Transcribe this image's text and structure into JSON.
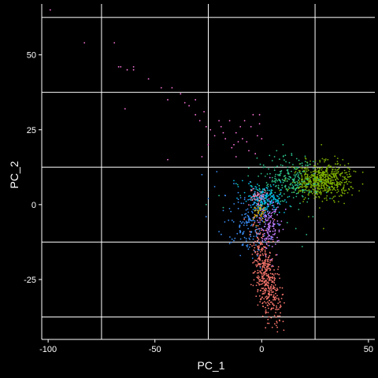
{
  "chart_data": {
    "type": "scatter",
    "title": "",
    "xlabel": "PC_1",
    "ylabel": "PC_2",
    "xlim": [
      -103,
      53
    ],
    "ylim": [
      -45,
      67
    ],
    "x_ticks": [
      -100,
      -50,
      0,
      50
    ],
    "y_ticks": [
      -25,
      0,
      25,
      50
    ],
    "x_tick_labels": [
      "-100",
      "-50",
      "0",
      "50"
    ],
    "y_tick_labels": [
      "-25",
      "0",
      "25",
      "50"
    ],
    "x_gridlines": [
      -75,
      -25,
      25
    ],
    "y_gridlines": [
      -37.5,
      -12.5,
      12.5,
      37.5,
      62.5
    ],
    "grid": true,
    "legend": "none",
    "background_color": "#000000",
    "foreground_color": "#ffffff",
    "series": [
      {
        "color": "#ff77dd",
        "points": [
          [
            -99,
            65
          ],
          [
            -83,
            54
          ],
          [
            -69,
            54
          ],
          [
            -67,
            46
          ],
          [
            -66,
            46
          ],
          [
            -63,
            45
          ],
          [
            -60,
            45
          ],
          [
            -60,
            46
          ],
          [
            -64,
            32
          ],
          [
            -53,
            42
          ],
          [
            -47,
            39
          ],
          [
            -44,
            35
          ],
          [
            -42,
            39
          ],
          [
            -38,
            37
          ],
          [
            -36,
            34
          ],
          [
            -34,
            33
          ],
          [
            -31,
            30
          ],
          [
            -29,
            28
          ],
          [
            -27,
            31
          ],
          [
            -26,
            26
          ],
          [
            -24,
            25
          ],
          [
            -22,
            23
          ],
          [
            -20,
            28
          ],
          [
            -19,
            26
          ],
          [
            -17,
            22
          ],
          [
            -15,
            28
          ],
          [
            -13,
            20
          ],
          [
            -12,
            24
          ],
          [
            -10,
            26
          ],
          [
            -9,
            22
          ],
          [
            -8,
            28
          ],
          [
            -7,
            21
          ],
          [
            -5,
            26
          ],
          [
            -4,
            30
          ],
          [
            -2,
            23
          ],
          [
            -1,
            27
          ],
          [
            0,
            22
          ],
          [
            -6,
            18
          ],
          [
            -12,
            16
          ],
          [
            -3,
            17
          ],
          [
            -1,
            30
          ],
          [
            -25,
            20
          ],
          [
            -28,
            16
          ],
          [
            -14,
            19
          ],
          [
            -11,
            21
          ],
          [
            -18,
            24
          ],
          [
            -31,
            35
          ],
          [
            -44,
            15
          ]
        ]
      },
      {
        "color": "#7cae00",
        "cluster": {
          "cx": 28,
          "cy": 8,
          "sx": 6.5,
          "sy": 2.8,
          "n": 620
        },
        "points": [
          [
            28,
            20
          ],
          [
            22,
            -4
          ],
          [
            29,
            -8
          ],
          [
            44,
            11
          ],
          [
            41,
            5
          ],
          [
            36,
            1
          ],
          [
            18,
            6
          ],
          [
            31,
            15
          ],
          [
            38,
            15
          ],
          [
            20,
            12
          ]
        ]
      },
      {
        "color": "#2cc28a",
        "cluster": {
          "cx": 12,
          "cy": 8,
          "sx": 7,
          "sy": 4,
          "n": 230
        },
        "points": [
          [
            10,
            20
          ],
          [
            7,
            18
          ],
          [
            6,
            16
          ],
          [
            14,
            17
          ],
          [
            5,
            9
          ],
          [
            3,
            6
          ],
          [
            1,
            5
          ],
          [
            2,
            2
          ],
          [
            0,
            0
          ],
          [
            -1,
            -1
          ],
          [
            -3,
            -2
          ],
          [
            6,
            -3
          ],
          [
            12,
            -6
          ],
          [
            16,
            -8
          ],
          [
            19,
            -14
          ],
          [
            21,
            -10
          ],
          [
            24,
            -4
          ],
          [
            13,
            14
          ],
          [
            9,
            11
          ],
          [
            -2,
            5
          ],
          [
            -10,
            3
          ],
          [
            -18,
            -1
          ],
          [
            -20,
            3
          ],
          [
            -26,
            0
          ],
          [
            8,
            2
          ],
          [
            4,
            0
          ]
        ]
      },
      {
        "color": "#00b9e3",
        "cluster": {
          "cx": 2,
          "cy": 2,
          "sx": 4,
          "sy": 2.2,
          "n": 190
        },
        "points": [
          [
            -6,
            7
          ],
          [
            -9,
            8
          ],
          [
            -11,
            6
          ],
          [
            -13,
            8
          ],
          [
            -5,
            5
          ],
          [
            -8,
            4
          ],
          [
            -4,
            2
          ],
          [
            -12,
            7
          ],
          [
            -3,
            6
          ]
        ]
      },
      {
        "color": "#3b8ff7",
        "cluster": {
          "cx": -5,
          "cy": -6,
          "sx": 5,
          "sy": 5,
          "n": 170
        },
        "points": [
          [
            -26,
            -4
          ],
          [
            -22,
            6
          ],
          [
            -25,
            2
          ],
          [
            -18,
            -2
          ],
          [
            -20,
            -9
          ],
          [
            -15,
            -13
          ],
          [
            -13,
            -12
          ],
          [
            -10,
            -17
          ],
          [
            -8,
            -11
          ],
          [
            -11,
            4
          ],
          [
            -17,
            3
          ],
          [
            -13,
            7
          ],
          [
            -28,
            10
          ],
          [
            -21,
            11
          ]
        ]
      },
      {
        "color": "#c77cff",
        "cluster": {
          "cx": 3,
          "cy": -7,
          "sx": 2.5,
          "sy": 4.5,
          "n": 140
        },
        "points": [
          [
            0,
            3
          ],
          [
            -2,
            0
          ],
          [
            1,
            -2
          ],
          [
            6,
            -10
          ],
          [
            8,
            -12
          ],
          [
            5,
            -14
          ],
          [
            4,
            1
          ]
        ]
      },
      {
        "color": "#f8766d",
        "cluster": {
          "cx": 2,
          "cy": -24,
          "sx": 2.6,
          "sy": 8,
          "n": 430,
          "tilt": 0.25
        },
        "points": [
          [
            7,
            -39
          ],
          [
            6,
            -37
          ],
          [
            5,
            -41
          ],
          [
            3,
            -36
          ],
          [
            -2,
            -11
          ],
          [
            -3,
            -16
          ],
          [
            9,
            -34
          ],
          [
            10,
            -30
          ],
          [
            -4,
            -27
          ],
          [
            6,
            -5
          ]
        ]
      },
      {
        "color": "#e5b000",
        "cluster": {
          "cx": -1,
          "cy": -2,
          "sx": 1.6,
          "sy": 1.6,
          "n": 35
        }
      },
      {
        "color": "#f97fb6",
        "cluster": {
          "cx": -2,
          "cy": 2,
          "sx": 2,
          "sy": 1.5,
          "n": 40
        }
      }
    ]
  }
}
